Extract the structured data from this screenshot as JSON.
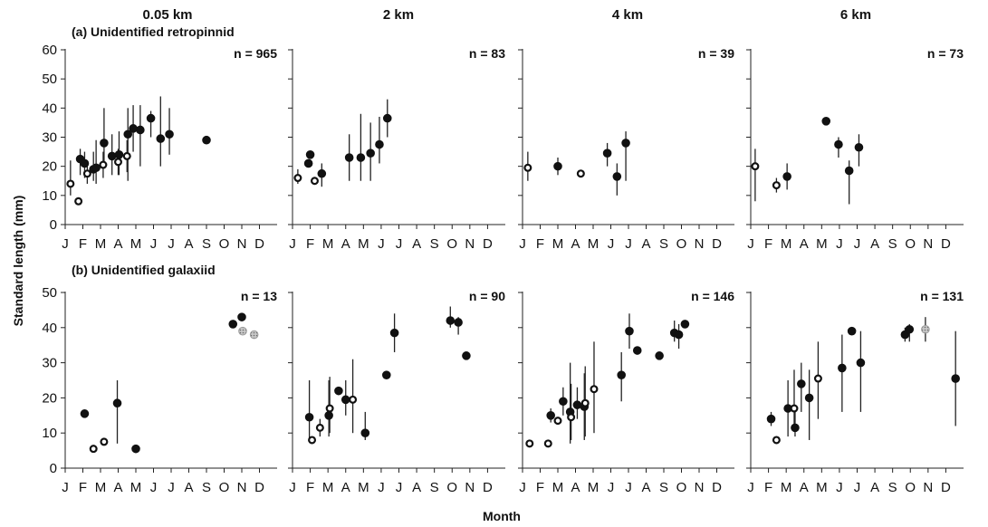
{
  "figure": {
    "ylabel": "Standard length (mm)",
    "xlabel": "Month",
    "column_titles": [
      "0.05 km",
      "2 km",
      "4 km",
      "6 km"
    ],
    "row_titles": [
      "(a) Unidentified retropinnid",
      "(b) Unidentified galaxiid"
    ],
    "month_ticks": [
      "J",
      "F",
      "M",
      "A",
      "M",
      "J",
      "J",
      "A",
      "S",
      "O",
      "N",
      "D"
    ],
    "colors": {
      "filled": "#111111",
      "open_fill": "#ffffff",
      "grey": "#9a9a9a"
    }
  },
  "chart_data": [
    {
      "type": "scatter",
      "row": "(a) Unidentified retropinnid",
      "column": "0.05 km",
      "annotation": "n = 965",
      "ylim": [
        0,
        60
      ],
      "yticks": [
        0,
        10,
        20,
        30,
        40,
        50,
        60
      ],
      "points": [
        {
          "x": 0.3,
          "y": 14,
          "lo": 10,
          "hi": 22,
          "marker": "open"
        },
        {
          "x": 0.75,
          "y": 8,
          "marker": "open"
        },
        {
          "x": 0.85,
          "y": 22.5,
          "lo": 17,
          "hi": 26,
          "marker": "filled"
        },
        {
          "x": 1.1,
          "y": 21,
          "lo": 16,
          "hi": 25,
          "marker": "filled"
        },
        {
          "x": 1.25,
          "y": 17.5,
          "lo": 14,
          "hi": 22,
          "marker": "open"
        },
        {
          "x": 1.6,
          "y": 19,
          "lo": 15,
          "hi": 25,
          "marker": "filled"
        },
        {
          "x": 1.75,
          "y": 19.5,
          "lo": 14,
          "hi": 29,
          "marker": "filled"
        },
        {
          "x": 2.15,
          "y": 20.5,
          "lo": 16,
          "hi": 25,
          "marker": "open"
        },
        {
          "x": 2.2,
          "y": 28,
          "lo": 20,
          "hi": 40,
          "marker": "filled"
        },
        {
          "x": 2.65,
          "y": 23.5,
          "lo": 17,
          "hi": 31,
          "marker": "filled"
        },
        {
          "x": 3.0,
          "y": 21.5,
          "lo": 17,
          "hi": 26,
          "marker": "open"
        },
        {
          "x": 3.05,
          "y": 24,
          "lo": 17,
          "hi": 32,
          "marker": "filled"
        },
        {
          "x": 3.5,
          "y": 23.5,
          "lo": 18,
          "hi": 29,
          "marker": "open"
        },
        {
          "x": 3.55,
          "y": 31,
          "lo": 15,
          "hi": 40,
          "marker": "filled"
        },
        {
          "x": 3.85,
          "y": 33,
          "lo": 25,
          "hi": 41,
          "marker": "filled"
        },
        {
          "x": 4.25,
          "y": 32.5,
          "lo": 20,
          "hi": 41,
          "marker": "filled"
        },
        {
          "x": 4.85,
          "y": 36.5,
          "lo": 30,
          "hi": 39,
          "marker": "filled"
        },
        {
          "x": 5.4,
          "y": 29.5,
          "lo": 20,
          "hi": 44,
          "marker": "filled"
        },
        {
          "x": 5.9,
          "y": 31,
          "lo": 24,
          "hi": 40,
          "marker": "filled"
        },
        {
          "x": 8.0,
          "y": 29,
          "marker": "filled"
        }
      ]
    },
    {
      "type": "scatter",
      "row": "(a) Unidentified retropinnid",
      "column": "2 km",
      "annotation": "n = 83",
      "ylim": [
        0,
        60
      ],
      "yticks": [
        0,
        10,
        20,
        30,
        40,
        50,
        60
      ],
      "points": [
        {
          "x": 0.3,
          "y": 16,
          "lo": 14,
          "hi": 19,
          "marker": "open"
        },
        {
          "x": 0.9,
          "y": 21,
          "marker": "filled"
        },
        {
          "x": 1.0,
          "y": 24,
          "marker": "filled"
        },
        {
          "x": 1.25,
          "y": 15,
          "marker": "open"
        },
        {
          "x": 1.65,
          "y": 17.5,
          "lo": 13,
          "hi": 21,
          "marker": "filled"
        },
        {
          "x": 3.2,
          "y": 23,
          "lo": 15,
          "hi": 31,
          "marker": "filled"
        },
        {
          "x": 3.85,
          "y": 23,
          "lo": 15,
          "hi": 38,
          "marker": "filled"
        },
        {
          "x": 4.4,
          "y": 24.5,
          "lo": 15,
          "hi": 35,
          "marker": "filled"
        },
        {
          "x": 4.9,
          "y": 27.5,
          "lo": 21,
          "hi": 37,
          "marker": "filled"
        },
        {
          "x": 5.35,
          "y": 36.5,
          "lo": 30,
          "hi": 43,
          "marker": "filled"
        }
      ]
    },
    {
      "type": "scatter",
      "row": "(a) Unidentified retropinnid",
      "column": "4 km",
      "annotation": "n = 39",
      "ylim": [
        0,
        60
      ],
      "yticks": [
        0,
        10,
        20,
        30,
        40,
        50,
        60
      ],
      "points": [
        {
          "x": 0.3,
          "y": 19.5,
          "lo": 15,
          "hi": 25,
          "marker": "open"
        },
        {
          "x": 2.0,
          "y": 20,
          "lo": 17,
          "hi": 23,
          "marker": "filled"
        },
        {
          "x": 3.3,
          "y": 17.5,
          "marker": "open"
        },
        {
          "x": 4.8,
          "y": 24.5,
          "lo": 20,
          "hi": 28,
          "marker": "filled"
        },
        {
          "x": 5.35,
          "y": 16.5,
          "lo": 10,
          "hi": 21,
          "marker": "filled"
        },
        {
          "x": 5.85,
          "y": 28,
          "lo": 15,
          "hi": 32,
          "marker": "filled"
        }
      ]
    },
    {
      "type": "scatter",
      "row": "(a) Unidentified retropinnid",
      "column": "6 km",
      "annotation": "n = 73",
      "ylim": [
        0,
        60
      ],
      "yticks": [
        0,
        10,
        20,
        30,
        40,
        50,
        60
      ],
      "points": [
        {
          "x": 0.25,
          "y": 20,
          "lo": 8,
          "hi": 26,
          "marker": "open"
        },
        {
          "x": 1.45,
          "y": 13.5,
          "lo": 11,
          "hi": 16,
          "marker": "open"
        },
        {
          "x": 2.05,
          "y": 16.5,
          "lo": 12,
          "hi": 21,
          "marker": "filled"
        },
        {
          "x": 4.25,
          "y": 35.5,
          "marker": "filled"
        },
        {
          "x": 4.95,
          "y": 27.5,
          "lo": 23,
          "hi": 30,
          "marker": "filled"
        },
        {
          "x": 5.55,
          "y": 18.5,
          "lo": 7,
          "hi": 22,
          "marker": "filled"
        },
        {
          "x": 6.1,
          "y": 26.5,
          "lo": 20,
          "hi": 31,
          "marker": "filled"
        }
      ]
    },
    {
      "type": "scatter",
      "row": "(b) Unidentified galaxiid",
      "column": "0.05 km",
      "annotation": "n = 13",
      "ylim": [
        0,
        50
      ],
      "yticks": [
        0,
        10,
        20,
        30,
        40,
        50
      ],
      "points": [
        {
          "x": 1.1,
          "y": 15.5,
          "marker": "filled"
        },
        {
          "x": 1.6,
          "y": 5.5,
          "marker": "open"
        },
        {
          "x": 2.2,
          "y": 7.5,
          "marker": "open"
        },
        {
          "x": 2.95,
          "y": 18.5,
          "lo": 7,
          "hi": 25,
          "marker": "filled"
        },
        {
          "x": 4.0,
          "y": 5.5,
          "marker": "filled"
        },
        {
          "x": 9.5,
          "y": 41,
          "marker": "filled"
        },
        {
          "x": 10.0,
          "y": 43,
          "marker": "filled"
        },
        {
          "x": 10.05,
          "y": 39,
          "marker": "grey"
        },
        {
          "x": 10.7,
          "y": 38,
          "marker": "grey"
        }
      ]
    },
    {
      "type": "scatter",
      "row": "(b) Unidentified galaxiid",
      "column": "2 km",
      "annotation": "n = 90",
      "ylim": [
        0,
        50
      ],
      "yticks": [
        0,
        10,
        20,
        30,
        40,
        50
      ],
      "points": [
        {
          "x": 0.95,
          "y": 14.5,
          "lo": 8,
          "hi": 25,
          "marker": "filled"
        },
        {
          "x": 1.1,
          "y": 8,
          "marker": "open"
        },
        {
          "x": 1.55,
          "y": 11.5,
          "lo": 9,
          "hi": 14,
          "marker": "open"
        },
        {
          "x": 2.05,
          "y": 15,
          "lo": 9,
          "hi": 25,
          "marker": "filled"
        },
        {
          "x": 2.1,
          "y": 17,
          "lo": 10,
          "hi": 26,
          "marker": "open"
        },
        {
          "x": 2.6,
          "y": 22,
          "marker": "filled"
        },
        {
          "x": 3.0,
          "y": 19.5,
          "lo": 15,
          "hi": 25,
          "marker": "filled"
        },
        {
          "x": 3.4,
          "y": 19.5,
          "lo": 10,
          "hi": 31,
          "marker": "open"
        },
        {
          "x": 4.1,
          "y": 10,
          "lo": 8,
          "hi": 16,
          "marker": "filled"
        },
        {
          "x": 5.3,
          "y": 26.5,
          "marker": "filled"
        },
        {
          "x": 5.75,
          "y": 38.5,
          "lo": 33,
          "hi": 44,
          "marker": "filled"
        },
        {
          "x": 8.9,
          "y": 42,
          "lo": 40,
          "hi": 46,
          "marker": "filled"
        },
        {
          "x": 9.35,
          "y": 41.5,
          "lo": 38,
          "hi": 43,
          "marker": "filled"
        },
        {
          "x": 9.8,
          "y": 32,
          "marker": "filled"
        }
      ]
    },
    {
      "type": "scatter",
      "row": "(b) Unidentified galaxiid",
      "column": "4 km",
      "annotation": "n = 146",
      "ylim": [
        0,
        50
      ],
      "yticks": [
        0,
        10,
        20,
        30,
        40,
        50
      ],
      "points": [
        {
          "x": 0.4,
          "y": 7,
          "marker": "open"
        },
        {
          "x": 1.45,
          "y": 7,
          "marker": "open"
        },
        {
          "x": 1.6,
          "y": 15,
          "lo": 13,
          "hi": 17,
          "marker": "filled"
        },
        {
          "x": 2.0,
          "y": 13.5,
          "marker": "open"
        },
        {
          "x": 2.3,
          "y": 19,
          "lo": 15,
          "hi": 23,
          "marker": "filled"
        },
        {
          "x": 2.7,
          "y": 16,
          "lo": 7,
          "hi": 30,
          "marker": "filled"
        },
        {
          "x": 2.75,
          "y": 14.5,
          "lo": 8,
          "hi": 24,
          "marker": "open"
        },
        {
          "x": 3.1,
          "y": 18,
          "lo": 14,
          "hi": 23,
          "marker": "filled"
        },
        {
          "x": 3.5,
          "y": 17.5,
          "lo": 8,
          "hi": 27,
          "marker": "filled"
        },
        {
          "x": 3.55,
          "y": 18.5,
          "lo": 9,
          "hi": 29,
          "marker": "open"
        },
        {
          "x": 4.05,
          "y": 22.5,
          "lo": 10,
          "hi": 36,
          "marker": "open"
        },
        {
          "x": 5.6,
          "y": 26.5,
          "lo": 19,
          "hi": 33,
          "marker": "filled"
        },
        {
          "x": 6.05,
          "y": 39,
          "lo": 34,
          "hi": 44,
          "marker": "filled"
        },
        {
          "x": 6.5,
          "y": 33.5,
          "marker": "filled"
        },
        {
          "x": 7.75,
          "y": 32,
          "marker": "filled"
        },
        {
          "x": 8.6,
          "y": 38.5,
          "lo": 36,
          "hi": 42,
          "marker": "filled"
        },
        {
          "x": 8.85,
          "y": 38,
          "lo": 34,
          "hi": 41,
          "marker": "filled"
        },
        {
          "x": 9.2,
          "y": 41,
          "marker": "filled"
        }
      ]
    },
    {
      "type": "scatter",
      "row": "(b) Unidentified galaxiid",
      "column": "6 km",
      "annotation": "n = 131",
      "ylim": [
        0,
        50
      ],
      "yticks": [
        0,
        10,
        20,
        30,
        40,
        50
      ],
      "points": [
        {
          "x": 1.15,
          "y": 14,
          "lo": 12,
          "hi": 16,
          "marker": "filled"
        },
        {
          "x": 1.45,
          "y": 8,
          "marker": "open"
        },
        {
          "x": 2.1,
          "y": 17,
          "lo": 9,
          "hi": 25,
          "marker": "filled"
        },
        {
          "x": 2.45,
          "y": 17,
          "lo": 11,
          "hi": 28,
          "marker": "open"
        },
        {
          "x": 2.5,
          "y": 11.5,
          "lo": 9,
          "hi": 16,
          "marker": "filled"
        },
        {
          "x": 2.85,
          "y": 24,
          "lo": 16,
          "hi": 30,
          "marker": "filled"
        },
        {
          "x": 3.3,
          "y": 20,
          "lo": 8,
          "hi": 28,
          "marker": "filled"
        },
        {
          "x": 3.8,
          "y": 25.5,
          "lo": 14,
          "hi": 36,
          "marker": "open"
        },
        {
          "x": 5.15,
          "y": 28.5,
          "lo": 16,
          "hi": 38,
          "marker": "filled"
        },
        {
          "x": 5.7,
          "y": 39,
          "marker": "filled"
        },
        {
          "x": 6.2,
          "y": 30,
          "lo": 16,
          "hi": 39,
          "marker": "filled"
        },
        {
          "x": 8.7,
          "y": 38,
          "lo": 36,
          "hi": 40,
          "marker": "filled"
        },
        {
          "x": 8.95,
          "y": 39.5,
          "lo": 36,
          "hi": 41,
          "marker": "filled"
        },
        {
          "x": 9.85,
          "y": 39.5,
          "lo": 36,
          "hi": 43,
          "marker": "grey"
        },
        {
          "x": 11.55,
          "y": 25.5,
          "lo": 12,
          "hi": 39,
          "marker": "filled"
        }
      ]
    }
  ]
}
